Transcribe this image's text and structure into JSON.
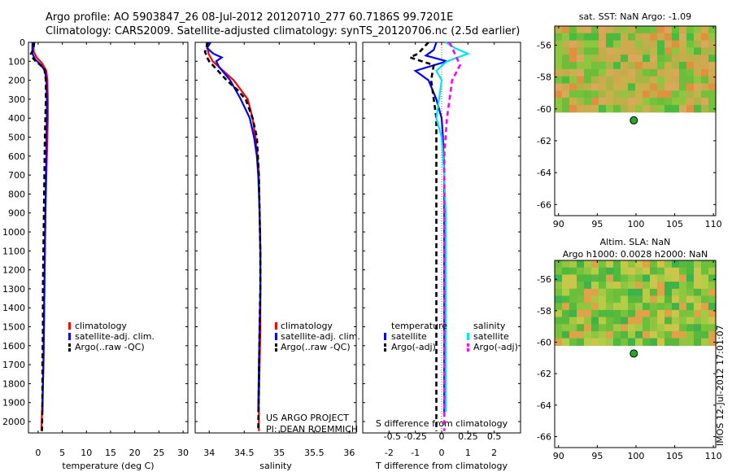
{
  "header": {
    "line1": "Argo profile: AO 5903847_26 08-Jul-2012 20120710_277 60.7186S 99.7201E",
    "line2": "Climatology: CARS2009. Satellite-adjusted climatology: synTS_20120706.nc (2.5d earlier)"
  },
  "side_stamp": "IMOS 12-Jul-2012 17:01:07",
  "colors": {
    "climatology": "#ff0000",
    "satellite": "#0000ff",
    "argo": "#000000",
    "satellite_salinity": "#00e5ee",
    "argo_salinity": "#ff00ff"
  },
  "chart_data": [
    {
      "type": "line",
      "panel": "temperature",
      "xlabel": "temperature (deg C)",
      "xlim": [
        -2,
        31
      ],
      "xticks": [
        0,
        5,
        10,
        15,
        20,
        25,
        30
      ],
      "ylim": [
        0,
        2060
      ],
      "yticks": [
        0,
        100,
        200,
        300,
        400,
        500,
        600,
        700,
        800,
        900,
        1000,
        1100,
        1200,
        1300,
        1400,
        1500,
        1600,
        1700,
        1800,
        1900,
        2000
      ],
      "legend_position": "lower-center",
      "series": [
        {
          "name": "climatology",
          "color": "#ff0000",
          "dash": "",
          "x": [
            -1.0,
            -0.9,
            -0.3,
            0.8,
            1.7,
            1.9,
            2.0,
            2.0,
            1.9,
            1.8,
            1.7,
            1.5,
            1.4,
            1.3,
            1.2,
            1.1,
            1.0,
            0.8,
            0.7
          ],
          "y": [
            0,
            50,
            80,
            110,
            150,
            200,
            300,
            400,
            500,
            600,
            700,
            900,
            1100,
            1300,
            1500,
            1700,
            1800,
            1950,
            2050
          ]
        },
        {
          "name": "satellite-adj. clim.",
          "color": "#0000ff",
          "dash": "",
          "x": [
            -1.2,
            -1.2,
            -0.6,
            0.6,
            1.4,
            1.7,
            1.8,
            1.8,
            1.7,
            1.7,
            1.6,
            1.5,
            1.4,
            1.3,
            1.2,
            1.1,
            1.0,
            0.9
          ],
          "y": [
            0,
            60,
            90,
            120,
            150,
            200,
            300,
            400,
            500,
            600,
            700,
            900,
            1100,
            1300,
            1500,
            1700,
            1800,
            1950
          ]
        },
        {
          "name": "Argo(..raw -QC)",
          "color": "#000000",
          "dash": "6,4",
          "x": [
            -0.8,
            -1.0,
            -1.5,
            -1.2,
            -0.5,
            0.5,
            1.3,
            1.6,
            1.6,
            1.5,
            1.4,
            1.3,
            1.2,
            1.1,
            1.0,
            1.0,
            0.9,
            0.9,
            0.8
          ],
          "y": [
            0,
            40,
            60,
            80,
            100,
            120,
            140,
            200,
            300,
            400,
            500,
            700,
            900,
            1100,
            1300,
            1500,
            1700,
            1900,
            2050
          ]
        }
      ]
    },
    {
      "type": "line",
      "panel": "salinity",
      "xlabel": "salinity",
      "xlim": [
        33.8,
        36.1
      ],
      "xticks": [
        34,
        34.5,
        35,
        35.5,
        36
      ],
      "ylim": [
        0,
        2060
      ],
      "legend_position": "lower-center",
      "series": [
        {
          "name": "climatology",
          "color": "#ff0000",
          "dash": "",
          "x": [
            33.96,
            33.99,
            34.05,
            34.2,
            34.35,
            34.45,
            34.55,
            34.62,
            34.66,
            34.69,
            34.71,
            34.72,
            34.73,
            34.73,
            34.73,
            34.72,
            34.71,
            34.71
          ],
          "y": [
            0,
            60,
            100,
            150,
            200,
            250,
            300,
            400,
            500,
            600,
            700,
            900,
            1100,
            1300,
            1500,
            1700,
            1900,
            2050
          ]
        },
        {
          "name": "satellite-adj. clim.",
          "color": "#0000ff",
          "dash": "",
          "x": [
            34.02,
            33.97,
            34.06,
            34.18,
            34.1,
            34.14,
            34.3,
            34.45,
            34.58,
            34.64,
            34.68,
            34.7,
            34.72,
            34.73,
            34.73,
            34.72,
            34.71,
            34.7
          ],
          "y": [
            0,
            30,
            60,
            80,
            100,
            130,
            200,
            300,
            400,
            500,
            600,
            700,
            900,
            1100,
            1300,
            1500,
            1700,
            1950
          ]
        },
        {
          "name": "Argo(..raw -QC)",
          "color": "#000000",
          "dash": "6,4",
          "x": [
            33.98,
            33.94,
            33.97,
            34.0,
            34.1,
            34.25,
            34.4,
            34.52,
            34.62,
            34.68,
            34.71,
            34.72,
            34.73,
            34.73,
            34.72,
            34.71,
            34.7
          ],
          "y": [
            0,
            50,
            80,
            100,
            140,
            200,
            250,
            300,
            400,
            500,
            700,
            900,
            1100,
            1300,
            1500,
            1800,
            2050
          ]
        }
      ]
    },
    {
      "type": "line",
      "panel": "difference",
      "xlabel": "T difference from climatology",
      "xlabel_top": "S difference from climatology",
      "xlim": [
        -3,
        3
      ],
      "xticks": [
        -2,
        -1,
        0,
        1,
        2
      ],
      "xtick_labels_salinity": [
        "-0.5",
        "-0.25",
        "0",
        "0.25",
        "0.5"
      ],
      "ylim": [
        0,
        2060
      ],
      "legend_position": "lower-center",
      "legend_titles": [
        "temperature",
        "salinity"
      ],
      "series": [
        {
          "name": "satellite",
          "group": "temperature",
          "color": "#0000ff",
          "dash": "",
          "x": [
            -0.2,
            -0.3,
            -0.6,
            0.2,
            -1.0,
            -0.5,
            -0.2,
            0.0,
            0.05,
            0.1,
            0.1,
            0.1,
            0.1,
            0.1,
            0.1,
            0.1
          ],
          "y": [
            0,
            40,
            70,
            100,
            150,
            200,
            300,
            400,
            500,
            700,
            900,
            1100,
            1300,
            1500,
            1700,
            1950
          ]
        },
        {
          "name": "Argo(-adj)",
          "group": "temperature",
          "color": "#000000",
          "dash": "6,4",
          "x": [
            -0.5,
            -0.9,
            -1.2,
            -0.3,
            -0.4,
            -0.3,
            -0.2,
            -0.2,
            -0.2,
            -0.2,
            -0.2,
            -0.2,
            -0.2,
            -0.2,
            -0.2
          ],
          "y": [
            0,
            60,
            80,
            120,
            200,
            300,
            400,
            600,
            800,
            1000,
            1200,
            1400,
            1600,
            1800,
            2050
          ]
        },
        {
          "name": "satellite",
          "group": "salinity",
          "color": "#00e5ee",
          "dash": "",
          "x": [
            0.15,
            0.5,
            1.0,
            0.2,
            -0.2,
            0.0,
            -0.1,
            -0.2,
            0.0,
            0.1,
            0.15,
            0.15,
            0.15,
            0.15,
            0.15
          ],
          "y": [
            0,
            30,
            60,
            100,
            150,
            200,
            300,
            400,
            500,
            700,
            900,
            1200,
            1500,
            1700,
            1950
          ]
        },
        {
          "name": "Argo(-adj)",
          "group": "salinity",
          "color": "#ff00ff",
          "dash": "6,4",
          "x": [
            0.3,
            0.5,
            0.7,
            0.4,
            0.2,
            0.1,
            0.1,
            0.1,
            0.1,
            0.1,
            0.1,
            0.1
          ],
          "y": [
            0,
            60,
            120,
            200,
            400,
            600,
            800,
            1000,
            1200,
            1500,
            1800,
            2050
          ]
        }
      ]
    },
    {
      "type": "heatmap",
      "panel": "sst_map",
      "title": "sat. SST: NaN Argo: -1.09",
      "xlim": [
        89.5,
        110.3
      ],
      "ylim": [
        -66.7,
        -54.8
      ],
      "xticks": [
        90,
        95,
        100,
        105,
        110
      ],
      "yticks": [
        -56,
        -58,
        -60,
        -62,
        -64,
        -66
      ],
      "argo_position": [
        99.72,
        -60.72
      ],
      "data_extent": {
        "lat_top": -54.8,
        "lat_bottom": -60.2
      }
    },
    {
      "type": "heatmap",
      "panel": "sla_map",
      "title_line1": "Altim. SLA: NaN",
      "title_line2": "Argo h1000: 0.0028 h2000: NaN",
      "xlim": [
        89.5,
        110.3
      ],
      "ylim": [
        -66.7,
        -54.8
      ],
      "xticks": [
        90,
        95,
        100,
        105,
        110
      ],
      "yticks": [
        -56,
        -58,
        -60,
        -62,
        -64,
        -66
      ],
      "argo_position": [
        99.72,
        -60.72
      ],
      "data_extent": {
        "lat_top": -54.8,
        "lat_bottom": -60.2
      }
    }
  ],
  "legend_profiles": {
    "climatology": "climatology",
    "satellite_adj": "satellite-adj. clim.",
    "argo": "Argo(..raw -QC)"
  },
  "legend_diff": {
    "temperature": "temperature",
    "salinity": "salinity",
    "satellite": "satellite",
    "argo_adj": "Argo(-adj)"
  },
  "credits": {
    "line1": "US ARGO PROJECT",
    "line2": "PI: DEAN ROEMMICH"
  }
}
